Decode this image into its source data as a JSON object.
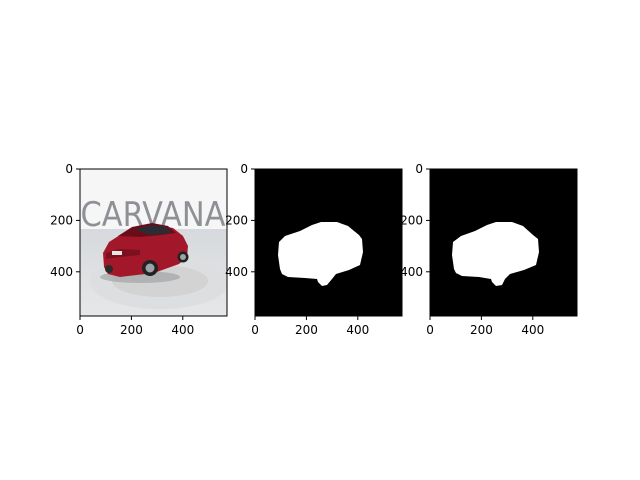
{
  "chart_data": [
    {
      "type": "image",
      "panel": "photo",
      "content": "car-photo",
      "brand_text": "CARVANA",
      "x_ticks": [
        0,
        200,
        400
      ],
      "y_ticks": [
        0,
        200,
        400
      ],
      "xlim": [
        0,
        572
      ],
      "ylim": [
        572,
        0
      ],
      "colors": {
        "car": "#a3172a",
        "floor": "#dcdfe2",
        "backdrop": "#f4f4f4",
        "logo": "#8b8f94"
      }
    },
    {
      "type": "image",
      "panel": "mask",
      "content": "car-mask",
      "x_ticks": [
        0,
        200,
        400
      ],
      "y_ticks": [
        0,
        200,
        400
      ],
      "xlim": [
        0,
        572
      ],
      "ylim": [
        572,
        0
      ],
      "colors": {
        "background": "#000000",
        "mask": "#ffffff"
      }
    },
    {
      "type": "image",
      "panel": "mask",
      "content": "car-mask",
      "x_ticks": [
        0,
        200,
        400
      ],
      "y_ticks": [
        0,
        200,
        400
      ],
      "xlim": [
        0,
        572
      ],
      "ylim": [
        572,
        0
      ],
      "colors": {
        "background": "#000000",
        "mask": "#ffffff"
      }
    }
  ]
}
